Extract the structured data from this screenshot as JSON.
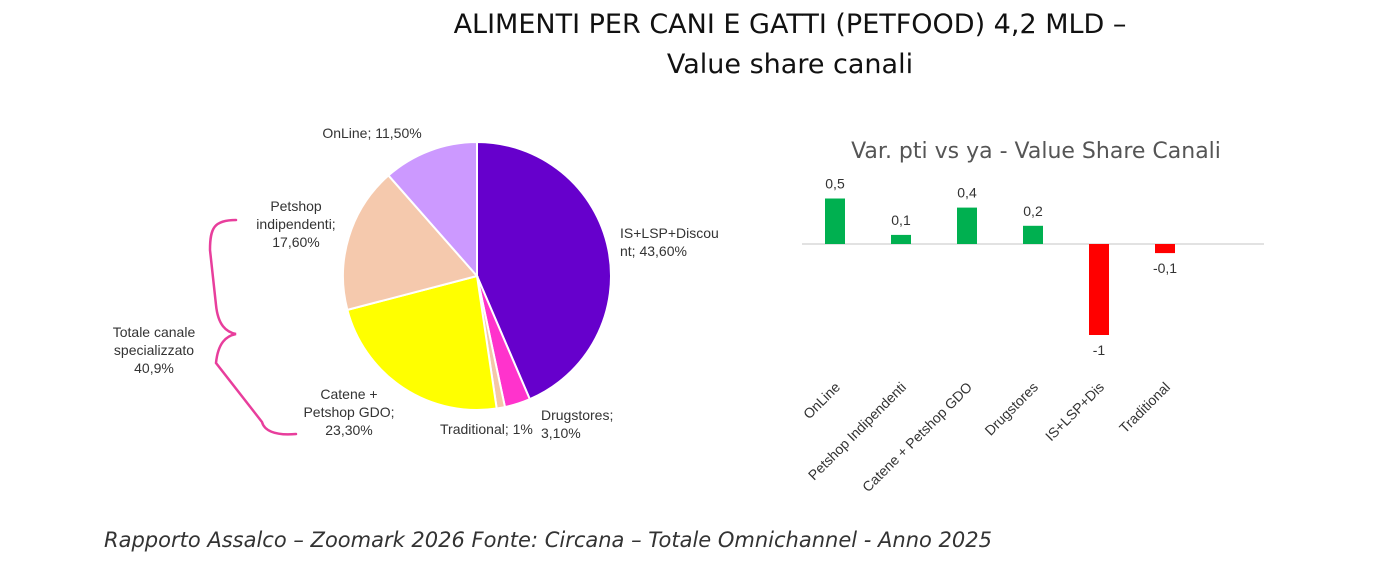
{
  "title_line1": "ALIMENTI PER CANI E GATTI (PETFOOD) 4,2 MLD –",
  "title_line2": "Value share canali",
  "source": "Rapporto Assalco – Zoomark 2026 Fonte: Circana – Totale Omnichannel - Anno 2025",
  "bracket_label": [
    "Totale canale",
    "specializzato",
    "40,9%"
  ],
  "chart_data": [
    {
      "type": "pie",
      "slices": [
        {
          "label": "IS+LSP+Discount",
          "value": 43.6,
          "text": [
            "IS+LSP+Discou",
            "nt; 43,60%"
          ],
          "color": "#6600cc"
        },
        {
          "label": "Drugstores",
          "value": 3.1,
          "text": [
            "Drugstores;",
            "3,10%"
          ],
          "color": "#ff33cc"
        },
        {
          "label": "Traditional",
          "value": 1.0,
          "text": [
            "Traditional; 1%"
          ],
          "color": "#f4c7a8"
        },
        {
          "label": "Catene + Petshop GDO",
          "value": 23.3,
          "text": [
            "Catene +",
            "Petshop GDO;",
            "23,30%"
          ],
          "color": "#ffff00"
        },
        {
          "label": "Petshop indipendenti",
          "value": 17.6,
          "text": [
            "Petshop",
            "indipendenti;",
            "17,60%"
          ],
          "color": "#f5c9ad"
        },
        {
          "label": "OnLine",
          "value": 11.5,
          "text": [
            "OnLine; 11,50%"
          ],
          "color": "#cc99ff"
        }
      ]
    },
    {
      "type": "bar",
      "title": "Var. pti vs ya - Value Share Canali",
      "categories": [
        "OnLine",
        "Petshop Indipendenti",
        "Catene + Petshop GDO",
        "Drugstores",
        "IS+LSP+Dis",
        "Traditional"
      ],
      "values": [
        0.5,
        0.1,
        0.4,
        0.2,
        -1,
        -0.1
      ],
      "value_labels": [
        "0,5",
        "0,1",
        "0,4",
        "0,2",
        "-1",
        "-0,1"
      ],
      "positive_color": "#00b050",
      "negative_color": "#ff0000",
      "ylim": [
        -1,
        0.5
      ]
    }
  ]
}
